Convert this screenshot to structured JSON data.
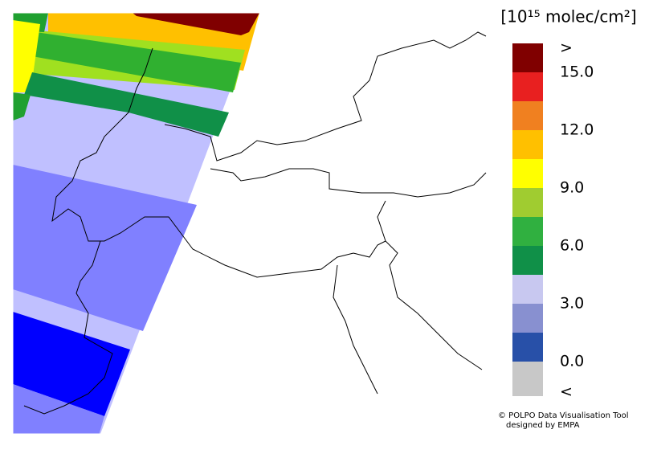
{
  "legend": {
    "title": "[10¹⁵ molec/cm²]",
    "colors": [
      "#800000",
      "#e82020",
      "#f08020",
      "#ffc000",
      "#ffff00",
      "#a0cc30",
      "#30b040",
      "#109048",
      "#c8c8f0",
      "#8890d0",
      "#2850a8",
      "#c8c8c8"
    ],
    "labels": [
      ">",
      "15.0",
      "12.0",
      "9.0",
      "6.0",
      "3.0",
      "0.0",
      "<"
    ]
  },
  "credit": {
    "lines": [
      "© POLPO Data Visualisation Tool",
      "designed by EMPA"
    ]
  }
}
